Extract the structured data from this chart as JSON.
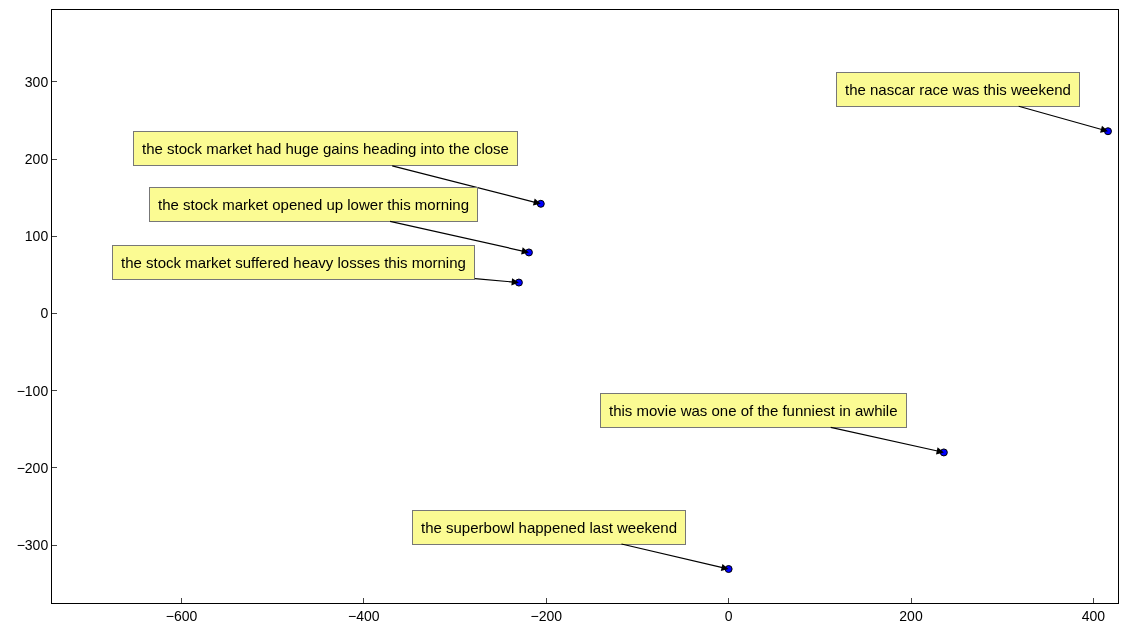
{
  "chart_data": {
    "type": "scatter",
    "x": [
      416,
      -206,
      -219,
      -230,
      236,
      0
    ],
    "values": [
      236,
      142,
      79,
      40,
      -180,
      -331
    ],
    "color": "#0000ff",
    "marker": "circle",
    "grid": false,
    "xlim": [
      -742,
      427
    ],
    "xticks": [
      -600,
      -400,
      -200,
      0,
      200,
      400
    ],
    "ylim": [
      -375,
      393
    ],
    "yticks": [
      -300,
      -200,
      -100,
      0,
      100,
      200,
      300
    ],
    "annotations": [
      {
        "text": "the nascar race was this weekend",
        "x": 416,
        "y": 236
      },
      {
        "text": "the stock market had huge gains heading into the close",
        "x": -206,
        "y": 142
      },
      {
        "text": "the stock market opened up lower this morning",
        "x": -219,
        "y": 79
      },
      {
        "text": "the stock market suffered heavy losses this morning",
        "x": -230,
        "y": 40
      },
      {
        "text": "this movie was one of the funniest in awhile",
        "x": 236,
        "y": -180
      },
      {
        "text": "the superbowl happened last weekend",
        "x": 0,
        "y": -331
      }
    ]
  }
}
